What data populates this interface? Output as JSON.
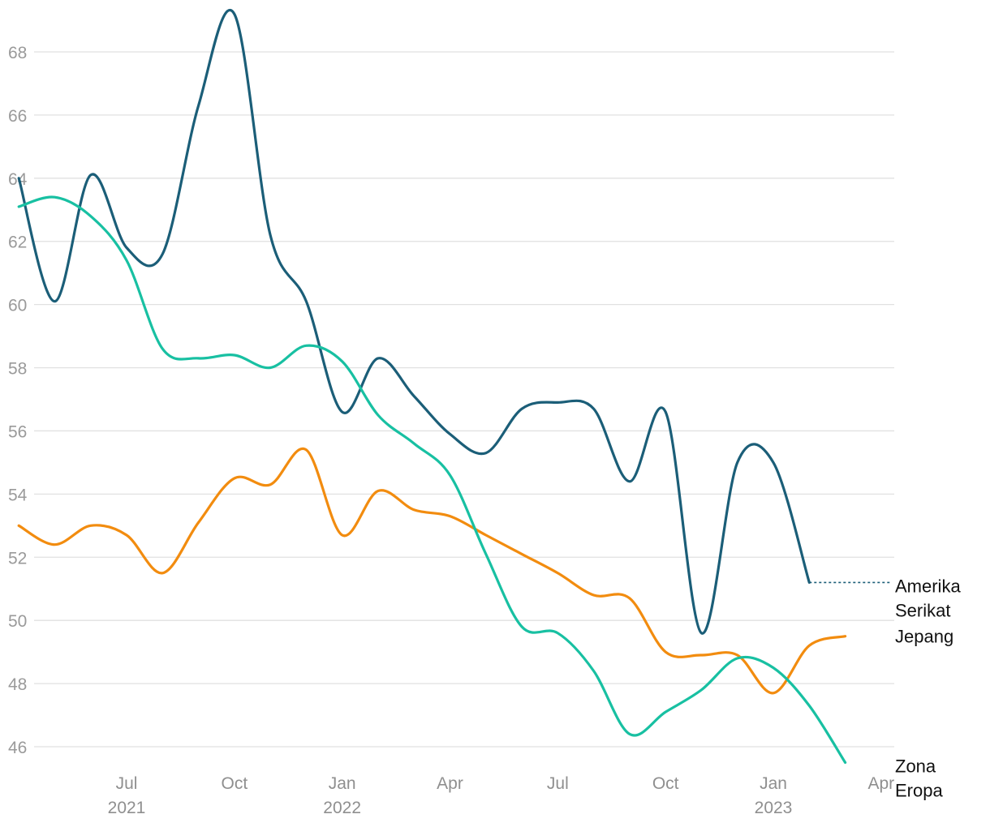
{
  "chart_data": {
    "type": "line",
    "ylim": [
      45.6,
      69.5
    ],
    "y_ticks": [
      46,
      48,
      50,
      52,
      54,
      56,
      58,
      60,
      62,
      64,
      66,
      68
    ],
    "x_ticks": [
      {
        "date": "2021-07",
        "label": "Jul",
        "year": "2021"
      },
      {
        "date": "2021-10",
        "label": "Oct",
        "year": ""
      },
      {
        "date": "2022-01",
        "label": "Jan",
        "year": "2022"
      },
      {
        "date": "2022-04",
        "label": "Apr",
        "year": ""
      },
      {
        "date": "2022-07",
        "label": "Jul",
        "year": ""
      },
      {
        "date": "2022-10",
        "label": "Oct",
        "year": ""
      },
      {
        "date": "2023-01",
        "label": "Jan",
        "year": "2023"
      },
      {
        "date": "2023-04",
        "label": "Apr",
        "year": ""
      }
    ],
    "grid": "horizontal",
    "series": [
      {
        "name": "Amerika Serikat",
        "label_lines": [
          "Amerika",
          "Serikat"
        ],
        "color": "#1b5e78",
        "dashed_extension_to_label": true,
        "points": [
          [
            "2021-04",
            64.0
          ],
          [
            "2021-05",
            60.1
          ],
          [
            "2021-06",
            64.1
          ],
          [
            "2021-07",
            61.8
          ],
          [
            "2021-08",
            61.6
          ],
          [
            "2021-09",
            66.3
          ],
          [
            "2021-10",
            69.2
          ],
          [
            "2021-11",
            62.2
          ],
          [
            "2021-12",
            60.1
          ],
          [
            "2022-01",
            56.6
          ],
          [
            "2022-02",
            58.3
          ],
          [
            "2022-03",
            57.1
          ],
          [
            "2022-04",
            55.9
          ],
          [
            "2022-05",
            55.3
          ],
          [
            "2022-06",
            56.7
          ],
          [
            "2022-07",
            56.9
          ],
          [
            "2022-08",
            56.7
          ],
          [
            "2022-09",
            54.4
          ],
          [
            "2022-10",
            56.6
          ],
          [
            "2022-11",
            49.6
          ],
          [
            "2022-12",
            55.0
          ],
          [
            "2023-01",
            55.0
          ],
          [
            "2023-02",
            51.2
          ]
        ]
      },
      {
        "name": "Jepang",
        "label_lines": [
          "Jepang"
        ],
        "color": "#f28c0f",
        "points": [
          [
            "2021-04",
            53.0
          ],
          [
            "2021-05",
            52.4
          ],
          [
            "2021-06",
            53.0
          ],
          [
            "2021-07",
            52.7
          ],
          [
            "2021-08",
            51.5
          ],
          [
            "2021-09",
            53.1
          ],
          [
            "2021-10",
            54.5
          ],
          [
            "2021-11",
            54.3
          ],
          [
            "2021-12",
            55.4
          ],
          [
            "2022-01",
            52.7
          ],
          [
            "2022-02",
            54.1
          ],
          [
            "2022-03",
            53.5
          ],
          [
            "2022-04",
            53.3
          ],
          [
            "2022-05",
            52.7
          ],
          [
            "2022-06",
            52.1
          ],
          [
            "2022-07",
            51.5
          ],
          [
            "2022-08",
            50.8
          ],
          [
            "2022-09",
            50.7
          ],
          [
            "2022-10",
            49.0
          ],
          [
            "2022-11",
            48.9
          ],
          [
            "2022-12",
            48.9
          ],
          [
            "2023-01",
            47.7
          ],
          [
            "2023-02",
            49.2
          ],
          [
            "2023-03",
            49.5
          ]
        ]
      },
      {
        "name": "Zona Eropa",
        "label_lines": [
          "Zona",
          "Eropa"
        ],
        "color": "#18c0a2",
        "points": [
          [
            "2021-04",
            63.1
          ],
          [
            "2021-05",
            63.4
          ],
          [
            "2021-06",
            62.8
          ],
          [
            "2021-07",
            61.4
          ],
          [
            "2021-08",
            58.6
          ],
          [
            "2021-09",
            58.3
          ],
          [
            "2021-10",
            58.4
          ],
          [
            "2021-11",
            58.0
          ],
          [
            "2021-12",
            58.7
          ],
          [
            "2022-01",
            58.2
          ],
          [
            "2022-02",
            56.5
          ],
          [
            "2022-03",
            55.6
          ],
          [
            "2022-04",
            54.6
          ],
          [
            "2022-05",
            52.1
          ],
          [
            "2022-06",
            49.8
          ],
          [
            "2022-07",
            49.6
          ],
          [
            "2022-08",
            48.4
          ],
          [
            "2022-09",
            46.4
          ],
          [
            "2022-10",
            47.1
          ],
          [
            "2022-11",
            47.8
          ],
          [
            "2022-12",
            48.8
          ],
          [
            "2023-01",
            48.5
          ],
          [
            "2023-02",
            47.3
          ],
          [
            "2023-03",
            45.5
          ]
        ]
      }
    ]
  }
}
